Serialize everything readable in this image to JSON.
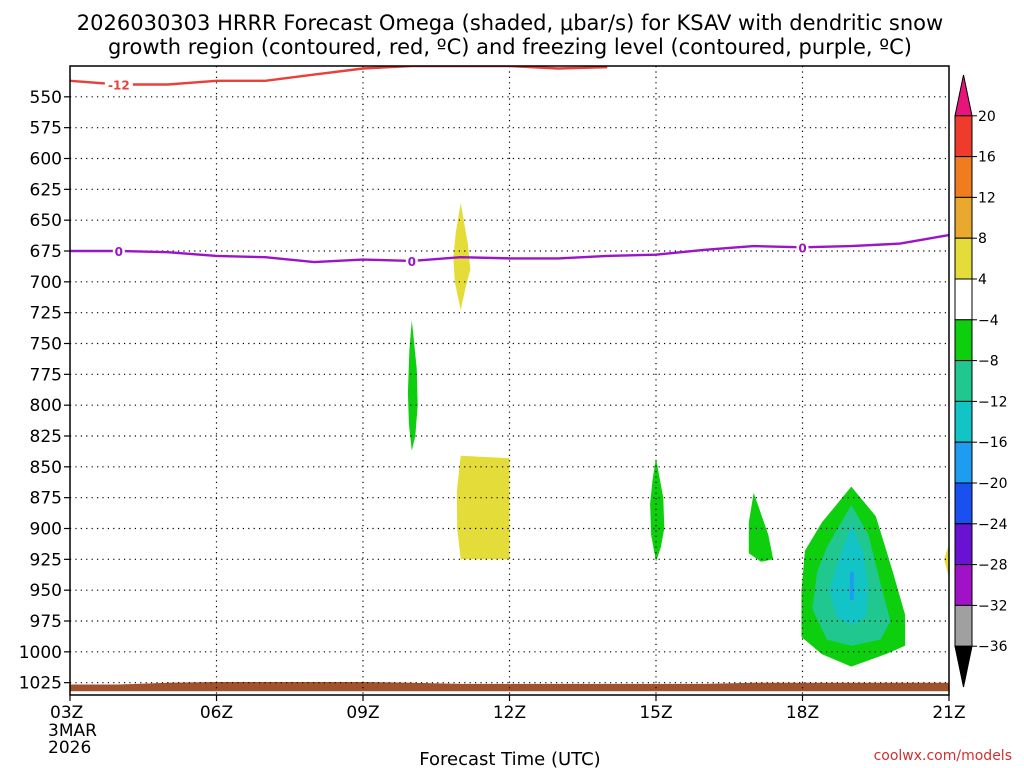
{
  "chart_data": {
    "type": "heatmap",
    "title_line1": "2026030303 HRRR Forecast Omega (shaded, μbar/s) for KSAV with dendritic snow",
    "title_line2": "growth region (contoured, red, ºC) and freezing level (contoured, purple, ºC)",
    "xlabel": "Forecast Time (UTC)",
    "credit": "coolwx.com/models",
    "x_range_hours": [
      3,
      21
    ],
    "x_ticks": [
      {
        "hour": 3,
        "label": "03Z",
        "sub1": "3MAR",
        "sub2": "2026"
      },
      {
        "hour": 6,
        "label": "06Z"
      },
      {
        "hour": 9,
        "label": "09Z"
      },
      {
        "hour": 12,
        "label": "12Z"
      },
      {
        "hour": 15,
        "label": "15Z"
      },
      {
        "hour": 18,
        "label": "18Z"
      },
      {
        "hour": 21,
        "label": "21Z"
      }
    ],
    "y_range_hpa": [
      1035,
      525
    ],
    "y_ticks": [
      550,
      575,
      600,
      625,
      650,
      675,
      700,
      725,
      750,
      775,
      800,
      825,
      850,
      875,
      900,
      925,
      950,
      975,
      1000,
      1025
    ],
    "grid": true,
    "colorbar": {
      "ticks": [
        "20",
        "16",
        "12",
        "8",
        "4",
        "-4",
        "-8",
        "-12",
        "-16",
        "-20",
        "-24",
        "-28",
        "-32",
        "-36"
      ],
      "colors_top_to_bottom": [
        "#e8147a",
        "#ef3b2c",
        "#f07c1e",
        "#e9a82e",
        "#e4dc38",
        "#ffffff",
        "#0ecf0e",
        "#20c890",
        "#13c4c6",
        "#1e9cf0",
        "#1a50f0",
        "#6a12d2",
        "#a012c8",
        "#a0a0a0",
        "#000000"
      ]
    },
    "contours": [
      {
        "name": "dendritic-growth-region",
        "label": "-12",
        "color": "#e8403a",
        "points": [
          [
            3,
            537
          ],
          [
            4,
            540
          ],
          [
            5,
            540
          ],
          [
            6,
            537
          ],
          [
            7,
            537
          ],
          [
            8,
            532
          ],
          [
            9,
            527
          ],
          [
            10,
            525
          ],
          [
            11,
            525
          ],
          [
            12,
            525
          ],
          [
            13,
            527
          ],
          [
            14,
            526
          ]
        ]
      },
      {
        "name": "freezing-level",
        "label": "0",
        "color": "#9b15c8",
        "points": [
          [
            3,
            675
          ],
          [
            4,
            675
          ],
          [
            5,
            676
          ],
          [
            6,
            679
          ],
          [
            7,
            680
          ],
          [
            8,
            684
          ],
          [
            9,
            682
          ],
          [
            10,
            683
          ],
          [
            11,
            680
          ],
          [
            12,
            681
          ],
          [
            13,
            681
          ],
          [
            14,
            679
          ],
          [
            15,
            678
          ],
          [
            16,
            674
          ],
          [
            17,
            671
          ],
          [
            18,
            672
          ],
          [
            19,
            671
          ],
          [
            20,
            669
          ],
          [
            21,
            662
          ]
        ]
      }
    ],
    "contour_label_positions": [
      {
        "series": "dendritic-growth-region",
        "label": "-12",
        "hour": 4.0
      },
      {
        "series": "freezing-level",
        "label": "0",
        "hour": 4.0
      },
      {
        "series": "freezing-level",
        "label": "0",
        "hour": 10.0
      },
      {
        "series": "freezing-level",
        "label": "0",
        "hour": 18.0
      }
    ],
    "omega_regions": [
      {
        "color": "#e4dc38",
        "points": [
          [
            11,
            636
          ],
          [
            11.15,
            670
          ],
          [
            11.2,
            690
          ],
          [
            11.1,
            705
          ],
          [
            11,
            723
          ],
          [
            10.88,
            700
          ],
          [
            10.85,
            680
          ],
          [
            10.9,
            660
          ]
        ]
      },
      {
        "color": "#e4dc38",
        "points": [
          [
            11,
            841
          ],
          [
            11.5,
            842
          ],
          [
            12,
            843
          ],
          [
            12,
            925
          ],
          [
            11.5,
            925
          ],
          [
            11,
            925
          ],
          [
            10.93,
            900
          ],
          [
            10.92,
            870
          ]
        ]
      },
      {
        "color": "#0ecf0e",
        "points": [
          [
            10,
            731
          ],
          [
            10.1,
            770
          ],
          [
            10.12,
            800
          ],
          [
            10.07,
            825
          ],
          [
            10,
            837
          ],
          [
            9.94,
            815
          ],
          [
            9.92,
            790
          ],
          [
            9.95,
            755
          ]
        ]
      },
      {
        "color": "#0ecf0e",
        "points": [
          [
            15,
            843
          ],
          [
            15.15,
            875
          ],
          [
            15.17,
            900
          ],
          [
            15.1,
            915
          ],
          [
            15,
            927
          ],
          [
            14.9,
            905
          ],
          [
            14.88,
            880
          ],
          [
            14.93,
            860
          ]
        ]
      },
      {
        "color": "#0ecf0e",
        "points": [
          [
            17,
            871
          ],
          [
            17.3,
            905
          ],
          [
            17.4,
            925
          ],
          [
            17.15,
            927
          ],
          [
            16.9,
            920
          ],
          [
            16.9,
            895
          ]
        ]
      },
      {
        "color": "#0ecf0e",
        "points": [
          [
            18.4,
            895
          ],
          [
            19,
            866
          ],
          [
            19.5,
            890
          ],
          [
            19.85,
            935
          ],
          [
            20.1,
            970
          ],
          [
            20.1,
            995
          ],
          [
            19.7,
            1002
          ],
          [
            19.0,
            1012
          ],
          [
            18.4,
            1002
          ],
          [
            17.98,
            988
          ],
          [
            17.98,
            950
          ],
          [
            18.05,
            918
          ]
        ]
      },
      {
        "color": "#20c890",
        "points": [
          [
            18.5,
            915
          ],
          [
            19,
            881
          ],
          [
            19.35,
            905
          ],
          [
            19.6,
            945
          ],
          [
            19.8,
            975
          ],
          [
            19.6,
            990
          ],
          [
            19.0,
            995
          ],
          [
            18.5,
            990
          ],
          [
            18.2,
            965
          ],
          [
            18.3,
            935
          ]
        ]
      },
      {
        "color": "#13c4c6",
        "points": [
          [
            18.7,
            930
          ],
          [
            19,
            897
          ],
          [
            19.25,
            920
          ],
          [
            19.35,
            950
          ],
          [
            19.3,
            972
          ],
          [
            19.0,
            978
          ],
          [
            18.7,
            972
          ],
          [
            18.55,
            950
          ]
        ]
      },
      {
        "color": "#1e9cf0",
        "points": [
          [
            18.97,
            935
          ],
          [
            19.05,
            935
          ],
          [
            19.05,
            958
          ],
          [
            18.97,
            958
          ]
        ]
      },
      {
        "color": "#e4dc38",
        "points": [
          [
            21,
            913
          ],
          [
            20.9,
            925
          ],
          [
            21,
            940
          ]
        ]
      }
    ],
    "terrain": {
      "color": "#a0522d",
      "top_points": [
        [
          3,
          1026.5
        ],
        [
          4,
          1026.5
        ],
        [
          5,
          1025
        ],
        [
          6,
          1024.5
        ],
        [
          7,
          1024.5
        ],
        [
          8,
          1024.5
        ],
        [
          9,
          1024.5
        ],
        [
          10,
          1025
        ],
        [
          11,
          1026
        ],
        [
          12,
          1026
        ],
        [
          13,
          1026
        ],
        [
          14,
          1026
        ],
        [
          15,
          1026
        ],
        [
          16,
          1026
        ],
        [
          17,
          1025
        ],
        [
          18,
          1025
        ],
        [
          19,
          1025
        ],
        [
          20,
          1025
        ],
        [
          21,
          1025
        ]
      ],
      "bottom_hpa": 1032
    }
  }
}
